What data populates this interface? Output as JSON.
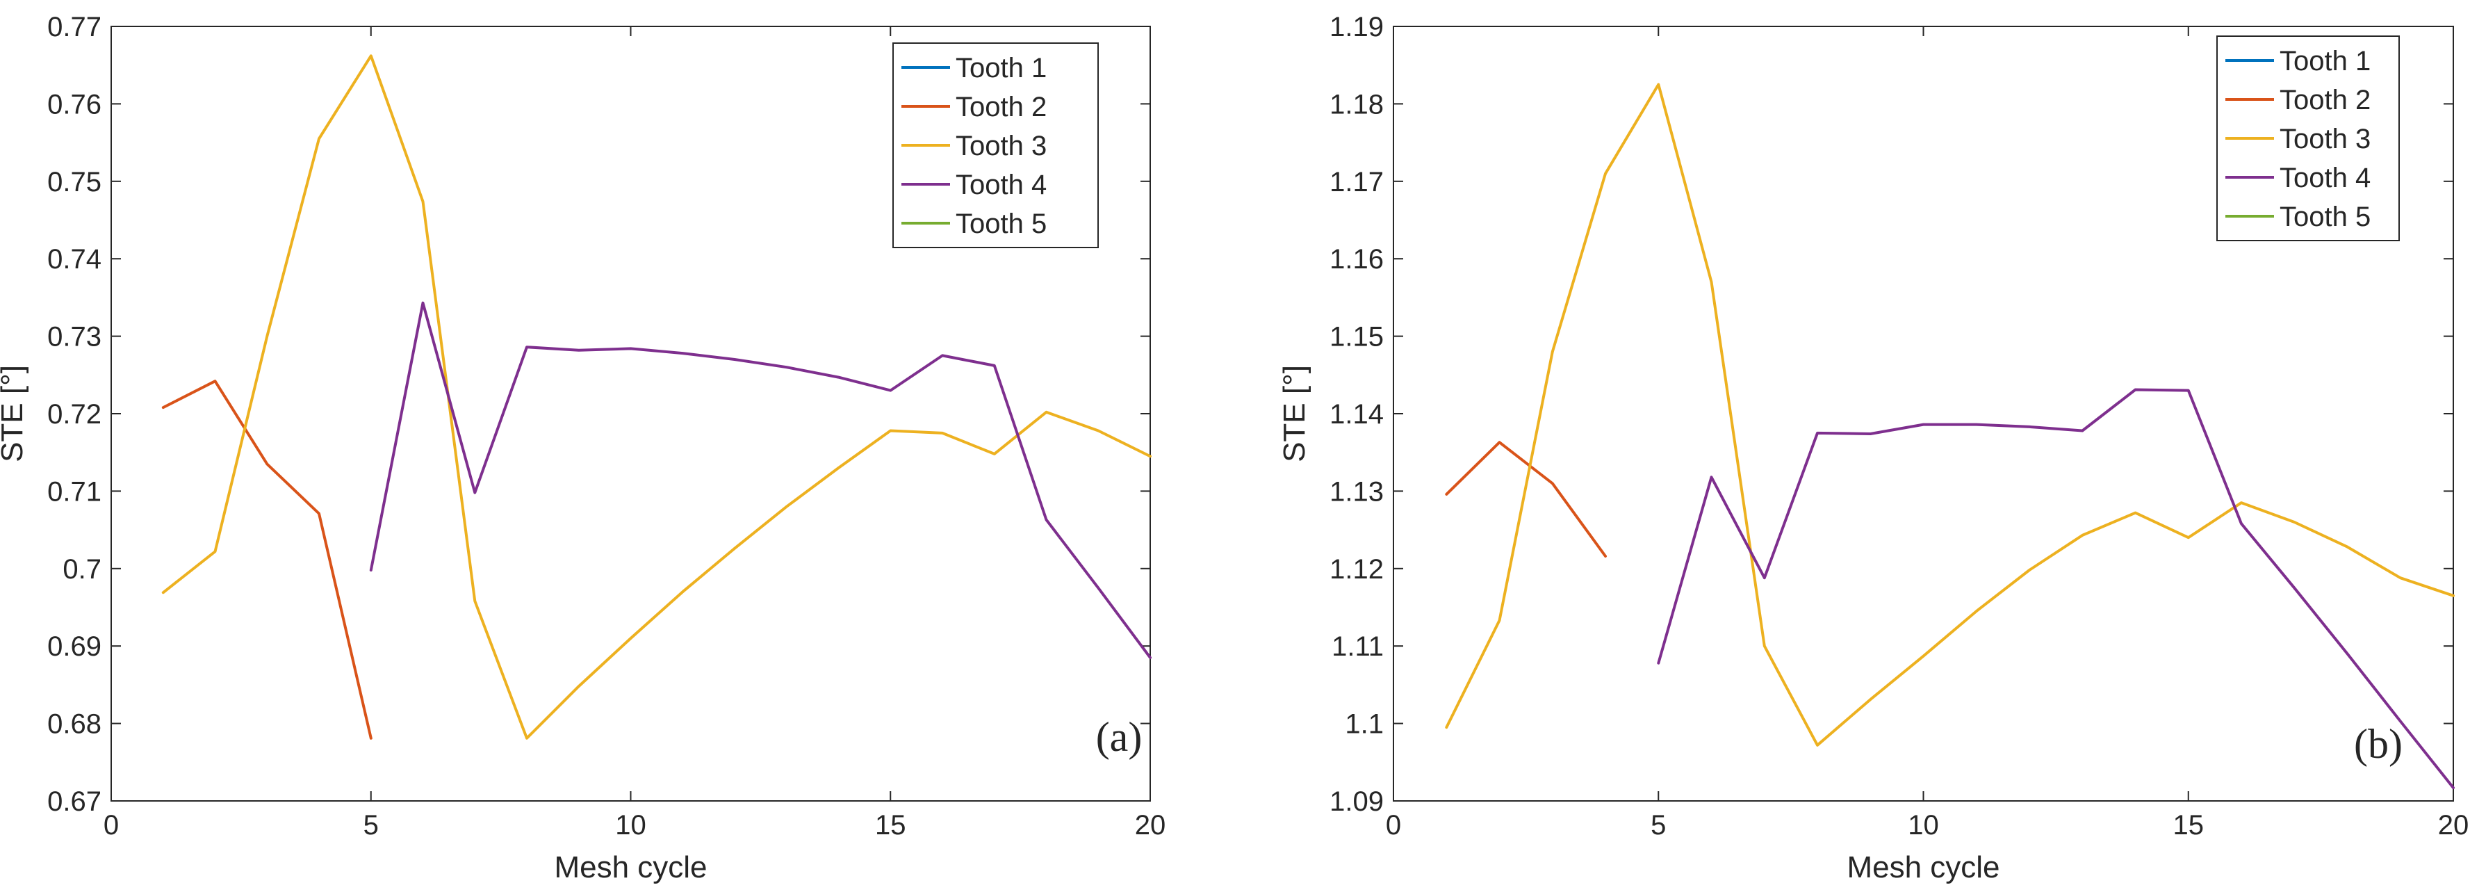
{
  "chart_data": [
    {
      "type": "line",
      "panel_label": "(a)",
      "title": "",
      "xlabel": "Mesh cycle",
      "ylabel": "STE [°]",
      "xlim": [
        0,
        20
      ],
      "ylim": [
        0.67,
        0.77
      ],
      "xticks": [
        0,
        5,
        10,
        15,
        20
      ],
      "xtick_labels": [
        "0",
        "5",
        "10",
        "15",
        "20"
      ],
      "yticks": [
        0.67,
        0.68,
        0.69,
        0.7,
        0.71,
        0.72,
        0.73,
        0.74,
        0.75,
        0.76,
        0.77
      ],
      "ytick_labels": [
        "0.67",
        "0.68",
        "0.69",
        "0.7",
        "0.71",
        "0.72",
        "0.73",
        "0.74",
        "0.75",
        "0.76",
        "0.77"
      ],
      "grid": false,
      "legend_position": "top-right",
      "series": [
        {
          "name": "Tooth 1",
          "color": "#0072BD",
          "x": [],
          "y": []
        },
        {
          "name": "Tooth 2",
          "color": "#D95319",
          "x": [
            1,
            2,
            3,
            4,
            5
          ],
          "y": [
            0.7208,
            0.7242,
            0.7135,
            0.7071,
            0.6781
          ]
        },
        {
          "name": "Tooth 3",
          "color": "#EDB120",
          "x": [
            1,
            2,
            3,
            4,
            5,
            6,
            7,
            8,
            9,
            10,
            11,
            12,
            13,
            14,
            15,
            16,
            17,
            18,
            19,
            20
          ],
          "y": [
            0.6969,
            0.7022,
            0.73,
            0.7555,
            0.7662,
            0.7474,
            0.6958,
            0.6781,
            0.6848,
            0.691,
            0.697,
            0.7026,
            0.708,
            0.713,
            0.7178,
            0.7175,
            0.7148,
            0.7202,
            0.7178,
            0.7145
          ]
        },
        {
          "name": "Tooth 4",
          "color": "#7E2F8E",
          "x": [
            5,
            6,
            7,
            8,
            9,
            10,
            11,
            12,
            13,
            14,
            15,
            16,
            17,
            18,
            19,
            20
          ],
          "y": [
            0.6998,
            0.7343,
            0.7098,
            0.7286,
            0.7282,
            0.7284,
            0.7278,
            0.727,
            0.726,
            0.7247,
            0.723,
            0.7275,
            0.7262,
            0.7063,
            0.6975,
            0.6885
          ]
        },
        {
          "name": "Tooth 5",
          "color": "#77AC30",
          "x": [],
          "y": []
        }
      ]
    },
    {
      "type": "line",
      "panel_label": "(b)",
      "title": "",
      "xlabel": "Mesh cycle",
      "ylabel": "STE [°]",
      "xlim": [
        0,
        20
      ],
      "ylim": [
        1.09,
        1.19
      ],
      "xticks": [
        0,
        5,
        10,
        15,
        20
      ],
      "xtick_labels": [
        "0",
        "5",
        "10",
        "15",
        "20"
      ],
      "yticks": [
        1.09,
        1.1,
        1.11,
        1.12,
        1.13,
        1.14,
        1.15,
        1.16,
        1.17,
        1.18,
        1.19
      ],
      "ytick_labels": [
        "1.09",
        "1.1",
        "1.11",
        "1.12",
        "1.13",
        "1.14",
        "1.15",
        "1.16",
        "1.17",
        "1.18",
        "1.19"
      ],
      "grid": false,
      "legend_position": "top-right",
      "series": [
        {
          "name": "Tooth 1",
          "color": "#0072BD",
          "x": [],
          "y": []
        },
        {
          "name": "Tooth 2",
          "color": "#D95319",
          "x": [
            1,
            2,
            3,
            4
          ],
          "y": [
            1.1296,
            1.1363,
            1.131,
            1.1216
          ]
        },
        {
          "name": "Tooth 3",
          "color": "#EDB120",
          "x": [
            1,
            2,
            3,
            4,
            5,
            6,
            7,
            8,
            9,
            10,
            11,
            12,
            13,
            14,
            15,
            16,
            17,
            18,
            19,
            20
          ],
          "y": [
            1.0995,
            1.1133,
            1.148,
            1.171,
            1.1825,
            1.157,
            1.11,
            1.0972,
            1.1031,
            1.1087,
            1.1145,
            1.1198,
            1.1243,
            1.1272,
            1.124,
            1.1285,
            1.126,
            1.1228,
            1.1188,
            1.1165
          ]
        },
        {
          "name": "Tooth 4",
          "color": "#7E2F8E",
          "x": [
            5,
            6,
            7,
            8,
            9,
            10,
            11,
            12,
            13,
            14,
            15,
            16,
            17,
            18,
            19,
            20
          ],
          "y": [
            1.1078,
            1.1318,
            1.1188,
            1.1375,
            1.1374,
            1.1386,
            1.1386,
            1.1383,
            1.1378,
            1.1431,
            1.143,
            1.1258,
            1.1175,
            1.109,
            1.1003,
            1.0917
          ]
        },
        {
          "name": "Tooth 5",
          "color": "#77AC30",
          "x": [],
          "y": []
        }
      ]
    }
  ]
}
